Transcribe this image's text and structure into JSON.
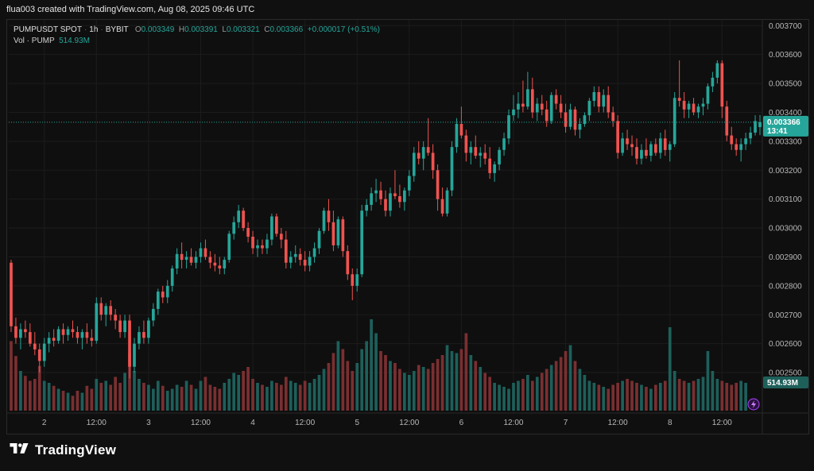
{
  "header": {
    "text": "flua003 created with TradingView.com, Aug 08, 2025 09:46 UTC"
  },
  "legend": {
    "symbol": "PUMPUSDT SPOT",
    "interval": "1h",
    "exchange": "BYBIT",
    "open_label": "O",
    "open": "0.003349",
    "high_label": "H",
    "high": "0.003391",
    "low_label": "L",
    "low": "0.003321",
    "close_label": "C",
    "close": "0.003366",
    "change": "+0.000017 (+0.51%)",
    "vol_label": "Vol · PUMP",
    "vol_value": "514.93M"
  },
  "footer": {
    "brand": "TradingView"
  },
  "colors": {
    "up": "#26a69a",
    "down": "#ef5350",
    "up_volume": "#1e5f5a",
    "down_volume": "#7a2f31",
    "grid": "#1c1c1c",
    "price_line": "#26a69a"
  },
  "chart_data": {
    "type": "candlestick",
    "interval": "1h",
    "y_axis": {
      "min": 0.00236,
      "max": 0.00372,
      "ticks": [
        "0.003700",
        "0.003600",
        "0.003500",
        "0.003400",
        "0.003300",
        "0.003200",
        "0.003100",
        "0.003000",
        "0.002900",
        "0.002800",
        "0.002700",
        "0.002600",
        "0.002500"
      ]
    },
    "x_axis": {
      "labels": [
        "2",
        "12:00",
        "3",
        "12:00",
        "4",
        "12:00",
        "5",
        "12:00",
        "6",
        "12:00",
        "7",
        "12:00",
        "8",
        "12:00"
      ],
      "label_index": [
        7,
        18,
        29,
        40,
        51,
        62,
        73,
        84,
        95,
        106,
        117,
        128,
        139,
        150
      ]
    },
    "current_price": {
      "value": 0.003366,
      "label": "0.003366",
      "countdown": "13:41"
    },
    "current_volume": {
      "label": "514.93M"
    },
    "candles": [
      [
        0.00288,
        0.00289,
        0.00264,
        0.00266
      ],
      [
        0.00266,
        0.00269,
        0.0026,
        0.00262
      ],
      [
        0.00262,
        0.00267,
        0.00258,
        0.00265
      ],
      [
        0.00265,
        0.00268,
        0.00262,
        0.00264
      ],
      [
        0.00264,
        0.00267,
        0.00259,
        0.0026
      ],
      [
        0.0026,
        0.00264,
        0.00256,
        0.00258
      ],
      [
        0.00258,
        0.0026,
        0.0025,
        0.00254
      ],
      [
        0.00254,
        0.00262,
        0.00252,
        0.0026
      ],
      [
        0.0026,
        0.00264,
        0.00257,
        0.00262
      ],
      [
        0.00262,
        0.00265,
        0.00259,
        0.00261
      ],
      [
        0.00261,
        0.00266,
        0.0026,
        0.00265
      ],
      [
        0.00265,
        0.00267,
        0.0026,
        0.00263
      ],
      [
        0.00263,
        0.00266,
        0.00261,
        0.00265
      ],
      [
        0.00265,
        0.00268,
        0.00262,
        0.00264
      ],
      [
        0.00264,
        0.00266,
        0.0026,
        0.00262
      ],
      [
        0.00262,
        0.00265,
        0.00258,
        0.00264
      ],
      [
        0.00264,
        0.00267,
        0.0026,
        0.00262
      ],
      [
        0.00262,
        0.00265,
        0.00259,
        0.00261
      ],
      [
        0.00261,
        0.00276,
        0.0026,
        0.00274
      ],
      [
        0.00274,
        0.00276,
        0.00268,
        0.0027
      ],
      [
        0.0027,
        0.00274,
        0.00266,
        0.00273
      ],
      [
        0.00273,
        0.00275,
        0.00268,
        0.0027
      ],
      [
        0.0027,
        0.00272,
        0.00265,
        0.00268
      ],
      [
        0.00268,
        0.0027,
        0.00262,
        0.00264
      ],
      [
        0.00264,
        0.0027,
        0.00262,
        0.00268
      ],
      [
        0.00268,
        0.0027,
        0.00248,
        0.00252
      ],
      [
        0.00252,
        0.00262,
        0.0025,
        0.0026
      ],
      [
        0.0026,
        0.00266,
        0.00258,
        0.00264
      ],
      [
        0.00264,
        0.00268,
        0.0026,
        0.00262
      ],
      [
        0.00262,
        0.00269,
        0.0026,
        0.00268
      ],
      [
        0.00268,
        0.00274,
        0.00266,
        0.00272
      ],
      [
        0.00272,
        0.00279,
        0.0027,
        0.00278
      ],
      [
        0.00278,
        0.0028,
        0.00274,
        0.00276
      ],
      [
        0.00276,
        0.00282,
        0.00274,
        0.0028
      ],
      [
        0.0028,
        0.00287,
        0.00278,
        0.00286
      ],
      [
        0.00286,
        0.00293,
        0.00284,
        0.00291
      ],
      [
        0.00291,
        0.00295,
        0.00286,
        0.00289
      ],
      [
        0.00289,
        0.00292,
        0.00286,
        0.0029
      ],
      [
        0.0029,
        0.00293,
        0.00287,
        0.00288
      ],
      [
        0.00288,
        0.00292,
        0.00286,
        0.0029
      ],
      [
        0.0029,
        0.00295,
        0.00288,
        0.00293
      ],
      [
        0.00293,
        0.00296,
        0.00289,
        0.0029
      ],
      [
        0.0029,
        0.00292,
        0.00286,
        0.00288
      ],
      [
        0.00288,
        0.00291,
        0.00285,
        0.00287
      ],
      [
        0.00287,
        0.0029,
        0.00284,
        0.00286
      ],
      [
        0.00286,
        0.0029,
        0.00284,
        0.00289
      ],
      [
        0.00289,
        0.00299,
        0.00288,
        0.00298
      ],
      [
        0.00298,
        0.00304,
        0.00296,
        0.00302
      ],
      [
        0.00302,
        0.00308,
        0.003,
        0.00306
      ],
      [
        0.00306,
        0.00307,
        0.00299,
        0.003
      ],
      [
        0.003,
        0.00302,
        0.00295,
        0.00297
      ],
      [
        0.00297,
        0.00299,
        0.00291,
        0.00293
      ],
      [
        0.00293,
        0.00296,
        0.0029,
        0.00294
      ],
      [
        0.00294,
        0.00296,
        0.00291,
        0.00293
      ],
      [
        0.00293,
        0.00298,
        0.00291,
        0.00296
      ],
      [
        0.00296,
        0.00305,
        0.00294,
        0.00304
      ],
      [
        0.00304,
        0.00305,
        0.00297,
        0.00298
      ],
      [
        0.00298,
        0.003,
        0.00293,
        0.00296
      ],
      [
        0.00296,
        0.00299,
        0.00286,
        0.00288
      ],
      [
        0.00288,
        0.00292,
        0.00286,
        0.0029
      ],
      [
        0.0029,
        0.00294,
        0.00288,
        0.00291
      ],
      [
        0.00291,
        0.00293,
        0.00287,
        0.00289
      ],
      [
        0.00289,
        0.00292,
        0.00285,
        0.00287
      ],
      [
        0.00287,
        0.00292,
        0.00285,
        0.0029
      ],
      [
        0.0029,
        0.00295,
        0.00288,
        0.00293
      ],
      [
        0.00293,
        0.003,
        0.00291,
        0.00299
      ],
      [
        0.00299,
        0.00307,
        0.00298,
        0.00306
      ],
      [
        0.00306,
        0.0031,
        0.00299,
        0.00302
      ],
      [
        0.00302,
        0.00306,
        0.00292,
        0.00294
      ],
      [
        0.00294,
        0.00304,
        0.00293,
        0.00303
      ],
      [
        0.00303,
        0.00304,
        0.0029,
        0.00292
      ],
      [
        0.00292,
        0.00294,
        0.00282,
        0.00284
      ],
      [
        0.00284,
        0.00286,
        0.00275,
        0.0028
      ],
      [
        0.0028,
        0.00286,
        0.00278,
        0.00284
      ],
      [
        0.00284,
        0.00308,
        0.00283,
        0.00306
      ],
      [
        0.00306,
        0.0031,
        0.00304,
        0.00308
      ],
      [
        0.00308,
        0.00314,
        0.00306,
        0.00312
      ],
      [
        0.00312,
        0.00317,
        0.00309,
        0.00313
      ],
      [
        0.00313,
        0.00316,
        0.00308,
        0.0031
      ],
      [
        0.0031,
        0.00313,
        0.00304,
        0.00306
      ],
      [
        0.00306,
        0.00314,
        0.00304,
        0.00312
      ],
      [
        0.00312,
        0.0032,
        0.0031,
        0.00311
      ],
      [
        0.00311,
        0.00315,
        0.00307,
        0.00309
      ],
      [
        0.00309,
        0.00314,
        0.00306,
        0.00313
      ],
      [
        0.00313,
        0.0032,
        0.00311,
        0.00318
      ],
      [
        0.00318,
        0.00328,
        0.00316,
        0.00326
      ],
      [
        0.00326,
        0.0033,
        0.00322,
        0.00324
      ],
      [
        0.00324,
        0.0033,
        0.0032,
        0.00328
      ],
      [
        0.00328,
        0.00338,
        0.00325,
        0.00326
      ],
      [
        0.00326,
        0.00329,
        0.00317,
        0.0032
      ],
      [
        0.0032,
        0.00322,
        0.00306,
        0.0031
      ],
      [
        0.0031,
        0.00314,
        0.00304,
        0.00305
      ],
      [
        0.00305,
        0.00314,
        0.00304,
        0.00313
      ],
      [
        0.00313,
        0.0033,
        0.00311,
        0.00328
      ],
      [
        0.00328,
        0.00338,
        0.00326,
        0.00336
      ],
      [
        0.00336,
        0.00342,
        0.00331,
        0.00332
      ],
      [
        0.00332,
        0.00334,
        0.00323,
        0.00326
      ],
      [
        0.00326,
        0.0033,
        0.00322,
        0.00328
      ],
      [
        0.00328,
        0.00332,
        0.00324,
        0.00325
      ],
      [
        0.00325,
        0.00328,
        0.00321,
        0.00326
      ],
      [
        0.00326,
        0.00329,
        0.00322,
        0.00324
      ],
      [
        0.00324,
        0.00328,
        0.00317,
        0.00319
      ],
      [
        0.00319,
        0.00323,
        0.00316,
        0.00322
      ],
      [
        0.00322,
        0.00328,
        0.0032,
        0.00327
      ],
      [
        0.00327,
        0.00333,
        0.00325,
        0.00331
      ],
      [
        0.00331,
        0.00341,
        0.00329,
        0.00339
      ],
      [
        0.00339,
        0.00346,
        0.00337,
        0.00341
      ],
      [
        0.00341,
        0.00347,
        0.00338,
        0.00343
      ],
      [
        0.00343,
        0.00351,
        0.0034,
        0.00342
      ],
      [
        0.00342,
        0.00354,
        0.00341,
        0.00348
      ],
      [
        0.00348,
        0.00352,
        0.00338,
        0.0034
      ],
      [
        0.0034,
        0.00345,
        0.00337,
        0.00343
      ],
      [
        0.00343,
        0.00346,
        0.00339,
        0.00341
      ],
      [
        0.00341,
        0.00344,
        0.00335,
        0.00337
      ],
      [
        0.00337,
        0.00347,
        0.00336,
        0.00346
      ],
      [
        0.00346,
        0.00348,
        0.00341,
        0.00343
      ],
      [
        0.00343,
        0.00346,
        0.00338,
        0.0034
      ],
      [
        0.0034,
        0.00343,
        0.00333,
        0.00335
      ],
      [
        0.00335,
        0.00343,
        0.00334,
        0.00341
      ],
      [
        0.00341,
        0.00342,
        0.00332,
        0.00334
      ],
      [
        0.00334,
        0.00338,
        0.00331,
        0.00336
      ],
      [
        0.00336,
        0.0034,
        0.00335,
        0.00339
      ],
      [
        0.00339,
        0.00345,
        0.00337,
        0.00344
      ],
      [
        0.00344,
        0.00349,
        0.00342,
        0.00347
      ],
      [
        0.00347,
        0.00349,
        0.0034,
        0.00342
      ],
      [
        0.00342,
        0.00348,
        0.0034,
        0.00346
      ],
      [
        0.00346,
        0.00349,
        0.00338,
        0.0034
      ],
      [
        0.0034,
        0.00342,
        0.00335,
        0.00337
      ],
      [
        0.00337,
        0.00339,
        0.00324,
        0.00326
      ],
      [
        0.00326,
        0.00333,
        0.00325,
        0.00331
      ],
      [
        0.00331,
        0.00334,
        0.00327,
        0.00329
      ],
      [
        0.00329,
        0.00332,
        0.00325,
        0.00328
      ],
      [
        0.00328,
        0.00331,
        0.00322,
        0.00324
      ],
      [
        0.00324,
        0.00329,
        0.00322,
        0.00327
      ],
      [
        0.00327,
        0.00331,
        0.00324,
        0.00325
      ],
      [
        0.00325,
        0.0033,
        0.00323,
        0.00329
      ],
      [
        0.00329,
        0.00331,
        0.00325,
        0.00326
      ],
      [
        0.00326,
        0.00333,
        0.00324,
        0.00331
      ],
      [
        0.00331,
        0.00334,
        0.00325,
        0.00327
      ],
      [
        0.00327,
        0.0033,
        0.00323,
        0.00329
      ],
      [
        0.00329,
        0.00347,
        0.00328,
        0.00345
      ],
      [
        0.00345,
        0.00358,
        0.00342,
        0.00344
      ],
      [
        0.00344,
        0.00347,
        0.00338,
        0.00341
      ],
      [
        0.00341,
        0.00344,
        0.00338,
        0.00343
      ],
      [
        0.00343,
        0.00345,
        0.00339,
        0.0034
      ],
      [
        0.0034,
        0.00343,
        0.00338,
        0.00342
      ],
      [
        0.00342,
        0.00345,
        0.00339,
        0.00343
      ],
      [
        0.00343,
        0.0035,
        0.00341,
        0.00349
      ],
      [
        0.00349,
        0.00354,
        0.00347,
        0.00352
      ],
      [
        0.00352,
        0.00358,
        0.0035,
        0.00357
      ],
      [
        0.00357,
        0.00358,
        0.00338,
        0.00342
      ],
      [
        0.00342,
        0.00344,
        0.0033,
        0.00332
      ],
      [
        0.00332,
        0.00335,
        0.00327,
        0.00329
      ],
      [
        0.00329,
        0.00331,
        0.00325,
        0.00327
      ],
      [
        0.00327,
        0.00331,
        0.00323,
        0.00329
      ],
      [
        0.00329,
        0.00333,
        0.00327,
        0.00331
      ],
      [
        0.00331,
        0.00335,
        0.00329,
        0.00333
      ],
      [
        0.00333,
        0.00339,
        0.00332,
        0.00337
      ],
      [
        0.003349,
        0.003391,
        0.003321,
        0.003366
      ]
    ],
    "volumes": [
      0.7,
      0.55,
      0.4,
      0.35,
      0.3,
      0.32,
      0.45,
      0.3,
      0.28,
      0.25,
      0.22,
      0.2,
      0.18,
      0.15,
      0.2,
      0.18,
      0.25,
      0.22,
      0.32,
      0.28,
      0.3,
      0.26,
      0.34,
      0.28,
      0.38,
      0.58,
      0.4,
      0.32,
      0.28,
      0.26,
      0.22,
      0.3,
      0.25,
      0.2,
      0.22,
      0.26,
      0.24,
      0.3,
      0.26,
      0.22,
      0.3,
      0.34,
      0.26,
      0.24,
      0.22,
      0.28,
      0.32,
      0.38,
      0.36,
      0.4,
      0.44,
      0.32,
      0.28,
      0.26,
      0.24,
      0.3,
      0.28,
      0.26,
      0.34,
      0.3,
      0.28,
      0.26,
      0.3,
      0.28,
      0.32,
      0.36,
      0.42,
      0.48,
      0.58,
      0.7,
      0.62,
      0.5,
      0.4,
      0.48,
      0.62,
      0.7,
      0.92,
      0.78,
      0.6,
      0.56,
      0.5,
      0.48,
      0.42,
      0.38,
      0.36,
      0.4,
      0.46,
      0.44,
      0.42,
      0.48,
      0.52,
      0.56,
      0.66,
      0.6,
      0.58,
      0.62,
      0.78,
      0.56,
      0.5,
      0.44,
      0.38,
      0.34,
      0.28,
      0.26,
      0.24,
      0.22,
      0.28,
      0.3,
      0.32,
      0.36,
      0.3,
      0.34,
      0.38,
      0.42,
      0.46,
      0.5,
      0.54,
      0.6,
      0.66,
      0.5,
      0.42,
      0.36,
      0.3,
      0.28,
      0.26,
      0.24,
      0.22,
      0.26,
      0.28,
      0.3,
      0.32,
      0.3,
      0.28,
      0.26,
      0.24,
      0.22,
      0.26,
      0.28,
      0.3,
      0.84,
      0.4,
      0.32,
      0.3,
      0.28,
      0.3,
      0.32,
      0.34,
      0.6,
      0.4,
      0.32,
      0.3,
      0.28,
      0.26,
      0.28,
      0.3,
      0.28
    ]
  }
}
